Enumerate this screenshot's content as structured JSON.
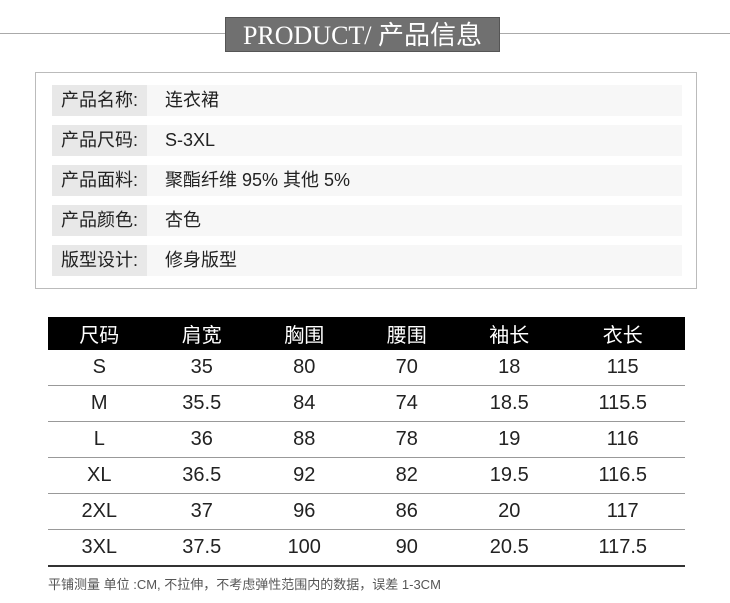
{
  "title": "PRODUCT/ 产品信息",
  "info": [
    {
      "label": "产品名称:",
      "value": "连衣裙"
    },
    {
      "label": "产品尺码:",
      "value": "S-3XL"
    },
    {
      "label": "产品面料:",
      "value": "聚酯纤维 95% 其他 5%"
    },
    {
      "label": "产品颜色:",
      "value": "杏色"
    },
    {
      "label": "版型设计:",
      "value": "修身版型"
    }
  ],
  "size_table": {
    "headers": [
      "尺码",
      "肩宽",
      "胸围",
      "腰围",
      "袖长",
      "衣长"
    ],
    "rows": [
      [
        "S",
        "35",
        "80",
        "70",
        "18",
        "115"
      ],
      [
        "M",
        "35.5",
        "84",
        "74",
        "18.5",
        "115.5"
      ],
      [
        "L",
        "36",
        "88",
        "78",
        "19",
        "116"
      ],
      [
        "XL",
        "36.5",
        "92",
        "82",
        "19.5",
        "116.5"
      ],
      [
        "2XL",
        "37",
        "96",
        "86",
        "20",
        "117"
      ],
      [
        "3XL",
        "37.5",
        "100",
        "90",
        "20.5",
        "117.5"
      ]
    ]
  },
  "note": "平铺测量 单位 :CM, 不拉伸，不考虑弹性范围内的数据，误差 1-3CM"
}
